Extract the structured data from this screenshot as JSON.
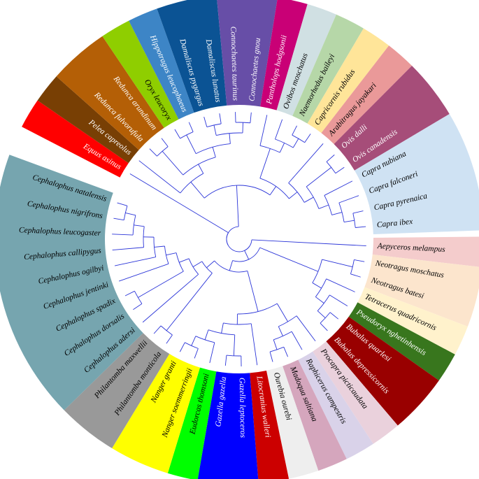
{
  "leaves": [
    "Aepyceros melampus",
    "Neotragus moschatus",
    "Neotragus batesi",
    "Tetracerus quadricornis",
    "Pseudoryx nghetinhensis",
    "Bubalus quarlesi",
    "Bubalus depressicornis",
    "Procapra picticaudata",
    "Raphicerus campestris",
    "Madoqua saltiana",
    "Ourebia ourebi",
    "Litocranius walleri",
    "Gazella leptoceros",
    "Gazella gazella",
    "Eudorcas thomsoni",
    "Nanger soemmerringii",
    "Nanger granti",
    "Philantomba monticola",
    "Philantomba maxwellii",
    "Cephalophus adersi",
    "Cephalophus dorsalis",
    "Cephalophus spadix",
    "Cephalophus jentinki",
    "Cephalophus ogilbyi",
    "Cephalophus callipygus",
    "Cephalophus leucogaster",
    "Cephalophus nigrifrons",
    "Cephalophus natalensis",
    "Equus asinus",
    "Pelea capreolus",
    "Redunca fulvorufula",
    "Redunca arundinum",
    "Oryx leucoryx",
    "Hippotragus leucophaeus",
    "Damaliscus pygargus",
    "Damaliscus lunatus",
    "Connochaetes taurinus",
    "Connochaetes gnou",
    "Pantholops hodgsonii",
    "Ovibos moschatus",
    "Naemorhedus baileyi",
    "Capricornis rubidus",
    "Arabitragus jayakari",
    "Ovis dalli",
    "Ovis canadensis",
    "Capra nubiana",
    "Capra falconeri",
    "Capra pyrenaica",
    "Capra ibex"
  ]
}
